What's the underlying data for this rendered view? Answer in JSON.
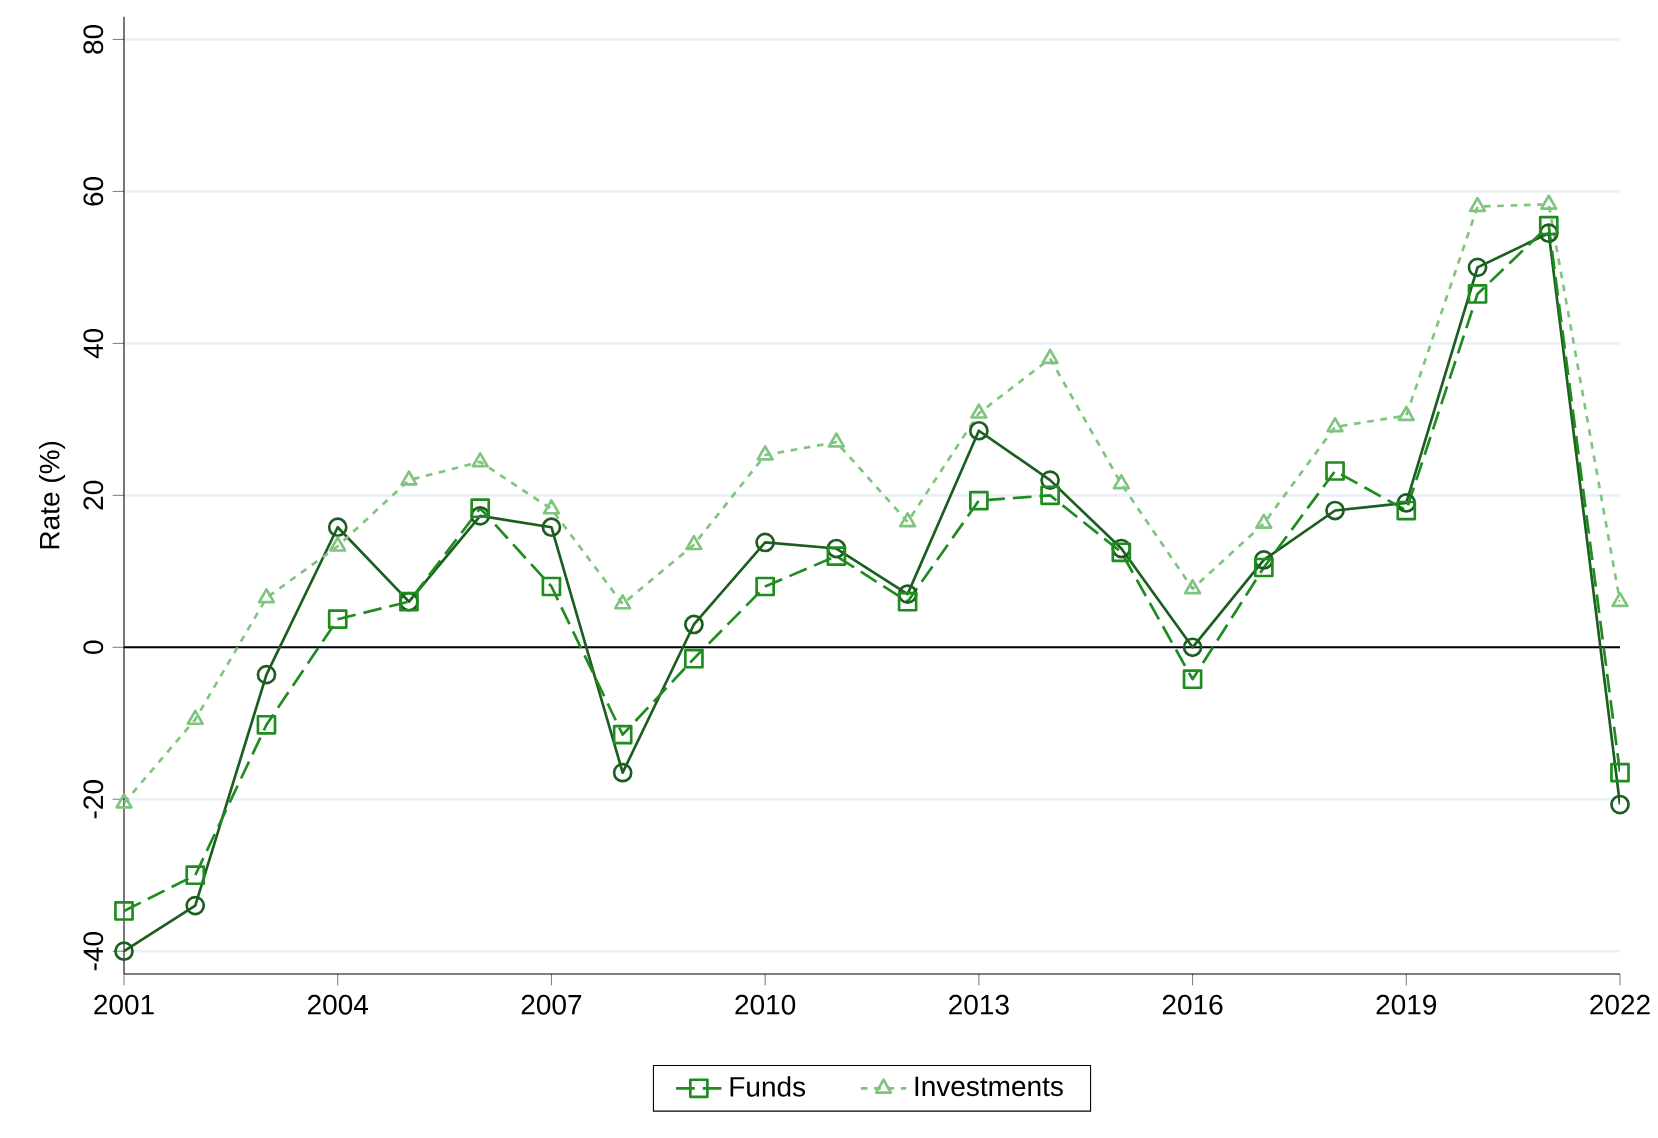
{
  "chart_data": {
    "type": "line",
    "ylabel": "Rate (%)",
    "x": [
      2001,
      2002,
      2003,
      2004,
      2005,
      2006,
      2007,
      2008,
      2009,
      2010,
      2011,
      2012,
      2013,
      2014,
      2015,
      2016,
      2017,
      2018,
      2019,
      2020,
      2021,
      2022
    ],
    "series": [
      {
        "color": "#1b5e20",
        "marker": "circle",
        "line_style": "solid",
        "values": [
          -40,
          -34,
          -3.6,
          15.8,
          6,
          17.3,
          15.8,
          -16.5,
          3,
          13.8,
          13,
          7,
          28.5,
          22,
          13,
          0,
          11.5,
          18,
          19,
          50,
          54.5,
          -20.7
        ]
      },
      {
        "name": "Funds",
        "color": "#1e8c1e",
        "marker": "square",
        "line_style": "dashed",
        "values": [
          -34.7,
          -30,
          -10.2,
          3.7,
          6,
          18.3,
          8,
          -11.5,
          -1.5,
          8,
          12,
          6,
          19.3,
          20,
          12.5,
          -4.2,
          10.5,
          23.2,
          18,
          46.5,
          55.5,
          -16.5
        ]
      },
      {
        "name": "Investments",
        "color": "#7fc47f",
        "marker": "triangle",
        "line_style": "dotted",
        "values": [
          -20.5,
          -9.5,
          6.5,
          13.3,
          22,
          24.4,
          18.2,
          5.7,
          13.5,
          25.3,
          27,
          16.5,
          30.8,
          38,
          21.5,
          7.7,
          16.3,
          29,
          30.5,
          58,
          58.3,
          6
        ]
      }
    ],
    "xlim": [
      2001,
      2022
    ],
    "xticks": [
      2001,
      2004,
      2007,
      2010,
      2013,
      2016,
      2019,
      2022
    ],
    "ylim": [
      -43,
      83
    ],
    "yticks": [
      -40,
      -20,
      0,
      20,
      40,
      60,
      80
    ],
    "ref_lines": [
      {
        "axis": "y",
        "value": 0,
        "color": "#000000"
      }
    ],
    "grid": "y",
    "legend": "bottom"
  }
}
